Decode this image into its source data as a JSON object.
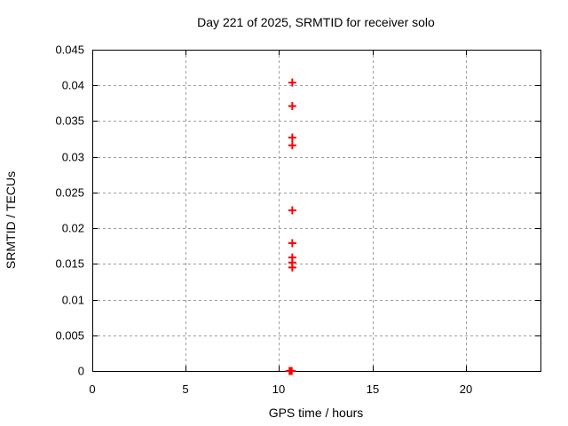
{
  "window": {
    "background_color": "#ffffff",
    "text_color": "#000000"
  },
  "chart_data": {
    "type": "scatter",
    "title": "Day 221 of 2025, SRMTID for receiver solo",
    "xlabel": "GPS time / hours",
    "ylabel": "SRMTID / TECUs",
    "xlim": [
      0,
      24
    ],
    "ylim": [
      0,
      0.045
    ],
    "xticks": [
      {
        "value": 0,
        "label": "0"
      },
      {
        "value": 5,
        "label": "5"
      },
      {
        "value": 10,
        "label": "10"
      },
      {
        "value": 15,
        "label": "15"
      },
      {
        "value": 20,
        "label": "20"
      }
    ],
    "yticks": [
      {
        "value": 0,
        "label": "0"
      },
      {
        "value": 0.005,
        "label": "0.005"
      },
      {
        "value": 0.01,
        "label": "0.01"
      },
      {
        "value": 0.015,
        "label": "0.015"
      },
      {
        "value": 0.02,
        "label": "0.02"
      },
      {
        "value": 0.025,
        "label": "0.025"
      },
      {
        "value": 0.03,
        "label": "0.03"
      },
      {
        "value": 0.035,
        "label": "0.035"
      },
      {
        "value": 0.04,
        "label": "0.04"
      },
      {
        "value": 0.045,
        "label": "0.045"
      }
    ],
    "grid": true,
    "legend": "none",
    "marker": {
      "shape": "plus",
      "color": "#ff0000",
      "size": 9,
      "stroke_width": 2
    },
    "axis_color": "#000000",
    "grid_color": "#9e9e9e",
    "series": [
      {
        "name": "SRMTID",
        "points": [
          [
            10.71,
            0.0404
          ],
          [
            10.71,
            0.0371
          ],
          [
            10.71,
            0.0327
          ],
          [
            10.71,
            0.0316
          ],
          [
            10.71,
            0.0225
          ],
          [
            10.71,
            0.0179
          ],
          [
            10.71,
            0.0159
          ],
          [
            10.71,
            0.0152
          ],
          [
            10.71,
            0.0145
          ],
          [
            10.56,
            0
          ],
          [
            10.6,
            0
          ],
          [
            10.64,
            0
          ],
          [
            10.68,
            0
          ]
        ]
      }
    ]
  }
}
